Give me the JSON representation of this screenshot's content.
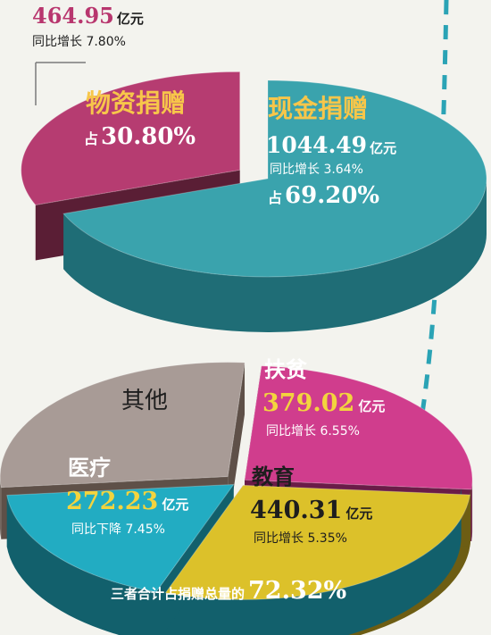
{
  "chart_data": [
    {
      "type": "pie",
      "slices": [
        {
          "name": "物资捐赠",
          "amount": "464.95",
          "unit": "亿元",
          "growth": "同比增长 7.80%",
          "share_prefix": "占",
          "share": "30.80%",
          "value": 30.8,
          "color": "#b63c71",
          "side": "#5a1e35"
        },
        {
          "name": "现金捐赠",
          "amount": "1044.49",
          "unit": "亿元",
          "growth": "同比增长 3.64%",
          "share_prefix": "占",
          "share": "69.20%",
          "value": 69.2,
          "color": "#3aa3ad",
          "side": "#1f6d76"
        }
      ]
    },
    {
      "type": "pie",
      "slices": [
        {
          "name": "其他",
          "value": 27.68,
          "color": "#a89b96",
          "side": "#5e5048"
        },
        {
          "name": "扶贫",
          "amount": "379.02",
          "unit": "亿元",
          "growth": "同比增长 6.55%",
          "value": 25.14,
          "color": "#d03d8d",
          "side": "#6a1c47"
        },
        {
          "name": "教育",
          "amount": "440.31",
          "unit": "亿元",
          "growth": "同比增长 5.35%",
          "value": 29.21,
          "color": "#dcc12a",
          "side": "#6d5d13"
        },
        {
          "name": "医疗",
          "amount": "272.23",
          "unit": "亿元",
          "growth": "同比下降 7.45%",
          "value": 17.97,
          "color": "#22acc2",
          "side": "#12606c"
        }
      ],
      "footnote_prefix": "三者合计占捐赠总量的",
      "footnote_value": "72.32%"
    }
  ]
}
